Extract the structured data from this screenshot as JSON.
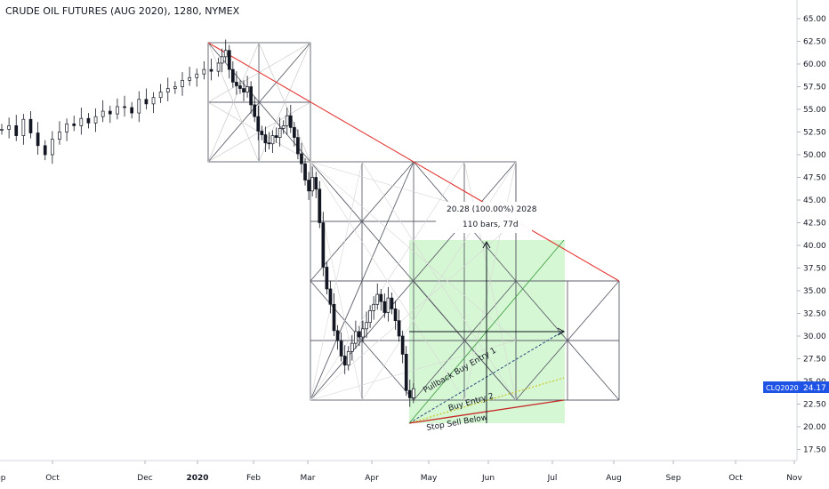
{
  "chart_data": {
    "type": "candlestick",
    "title": "CRUDE OIL FUTURES (AUG 2020), 1280, NYMEX",
    "y_ticks": [
      "65.00",
      "62.50",
      "60.00",
      "57.50",
      "55.00",
      "52.50",
      "50.00",
      "47.50",
      "45.00",
      "42.50",
      "40.00",
      "37.50",
      "35.00",
      "32.50",
      "30.00",
      "27.50",
      "25.00",
      "22.50",
      "20.00",
      "17.50"
    ],
    "ylim": [
      15.5,
      66.5
    ],
    "x_ticks": [
      "Sep",
      "Oct",
      "Dec",
      "2020",
      "Feb",
      "Mar",
      "Apr",
      "May",
      "Jun",
      "Jul",
      "Aug",
      "Sep",
      "Oct",
      "Nov"
    ],
    "price_label": {
      "symbol": "CLQ2020",
      "value": "24.17"
    },
    "measure": {
      "line1": "20.28 (100.00%) 2028",
      "line2": "110 bars, 77d"
    },
    "annotations": [
      "Pullback Buy Entry 1",
      "Buy Entry 2",
      "Stop Sell Below"
    ],
    "close_path": [
      [
        0,
        52.8
      ],
      [
        0.02,
        53.2
      ],
      [
        0.04,
        52.1
      ],
      [
        0.06,
        53.9
      ],
      [
        0.08,
        52.4
      ],
      [
        0.1,
        51.0
      ],
      [
        0.12,
        50.0
      ],
      [
        0.14,
        51.7
      ],
      [
        0.16,
        52.5
      ],
      [
        0.18,
        53.4
      ],
      [
        0.2,
        53.2
      ],
      [
        0.22,
        54.0
      ],
      [
        0.24,
        53.5
      ],
      [
        0.26,
        54.2
      ],
      [
        0.28,
        54.8
      ],
      [
        0.3,
        54.5
      ],
      [
        0.32,
        55.3
      ],
      [
        0.34,
        55.2
      ],
      [
        0.36,
        54.6
      ],
      [
        0.38,
        56.1
      ],
      [
        0.4,
        55.6
      ],
      [
        0.42,
        56.3
      ],
      [
        0.44,
        56.9
      ],
      [
        0.46,
        57.3
      ],
      [
        0.48,
        57.5
      ],
      [
        0.5,
        58.2
      ],
      [
        0.52,
        58.5
      ],
      [
        0.54,
        58.9
      ],
      [
        0.56,
        59.4
      ],
      [
        0.58,
        59.2
      ],
      [
        0.6,
        60.1
      ],
      [
        0.61,
        60.8
      ],
      [
        0.62,
        61.5
      ],
      [
        0.63,
        59.4
      ],
      [
        0.64,
        58.0
      ],
      [
        0.65,
        57.6
      ],
      [
        0.66,
        57.3
      ],
      [
        0.67,
        56.9
      ],
      [
        0.68,
        57.5
      ],
      [
        0.69,
        55.5
      ],
      [
        0.7,
        54.2
      ],
      [
        0.71,
        52.6
      ],
      [
        0.72,
        52.2
      ],
      [
        0.73,
        51.3
      ],
      [
        0.74,
        51.2
      ],
      [
        0.75,
        52.1
      ],
      [
        0.76,
        51.9
      ],
      [
        0.77,
        52.9
      ],
      [
        0.78,
        53.2
      ],
      [
        0.79,
        54.3
      ],
      [
        0.8,
        53.0
      ],
      [
        0.81,
        51.9
      ],
      [
        0.82,
        50.1
      ],
      [
        0.83,
        49.0
      ],
      [
        0.84,
        47.2
      ],
      [
        0.85,
        46.0
      ],
      [
        0.86,
        47.5
      ],
      [
        0.87,
        46.2
      ],
      [
        0.88,
        42.5
      ],
      [
        0.89,
        37.6
      ],
      [
        0.9,
        35.2
      ],
      [
        0.91,
        33.5
      ],
      [
        0.92,
        30.6
      ],
      [
        0.93,
        29.5
      ],
      [
        0.94,
        27.8
      ],
      [
        0.95,
        26.8
      ],
      [
        0.96,
        28.3
      ],
      [
        0.97,
        29.2
      ],
      [
        0.98,
        30.5
      ],
      [
        0.99,
        29.9
      ],
      [
        1.0,
        30.8
      ],
      [
        1.01,
        31.5
      ],
      [
        1.02,
        32.8
      ],
      [
        1.03,
        33.5
      ],
      [
        1.04,
        34.6
      ],
      [
        1.05,
        33.8
      ],
      [
        1.06,
        32.6
      ],
      [
        1.07,
        34.2
      ],
      [
        1.08,
        33.0
      ],
      [
        1.09,
        31.7
      ],
      [
        1.1,
        30.0
      ],
      [
        1.11,
        28.0
      ],
      [
        1.12,
        24.0
      ],
      [
        1.13,
        23.2
      ],
      [
        1.14,
        24.2
      ]
    ]
  }
}
